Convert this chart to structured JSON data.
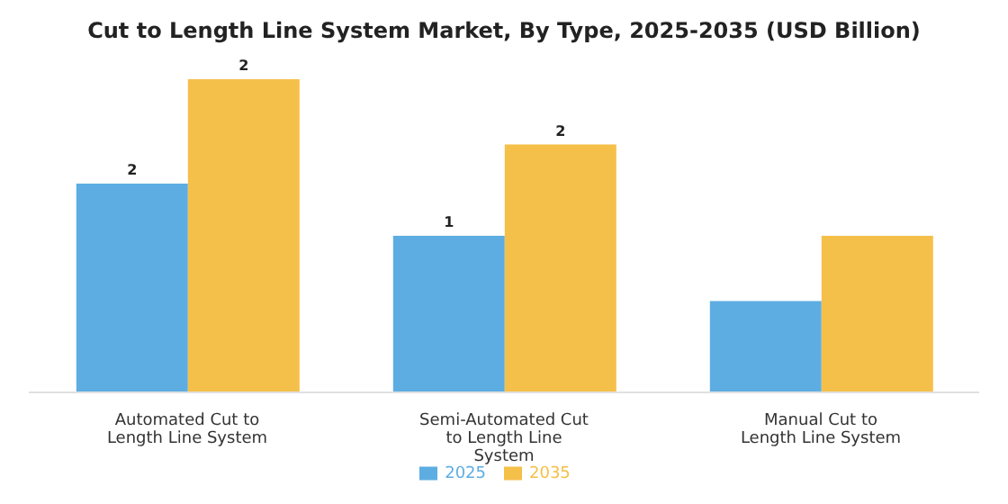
{
  "chart_data": {
    "type": "bar",
    "title": "Cut to Length Line System Market, By Type, 2025-2035 (USD Billion)",
    "categories": [
      "Automated Cut to Length Line System",
      "Semi-Automated Cut to Length Line System",
      "Manual Cut to Length Line System"
    ],
    "series": [
      {
        "name": "2025",
        "color": "#5dade2",
        "values": [
          1.6,
          1.2,
          0.7
        ],
        "value_labels": [
          "2",
          "1",
          null
        ]
      },
      {
        "name": "2035",
        "color": "#f5c04a",
        "values": [
          2.4,
          1.9,
          1.2
        ],
        "value_labels": [
          "2",
          "2",
          null
        ]
      }
    ],
    "legend": "bottom",
    "grid": false
  }
}
